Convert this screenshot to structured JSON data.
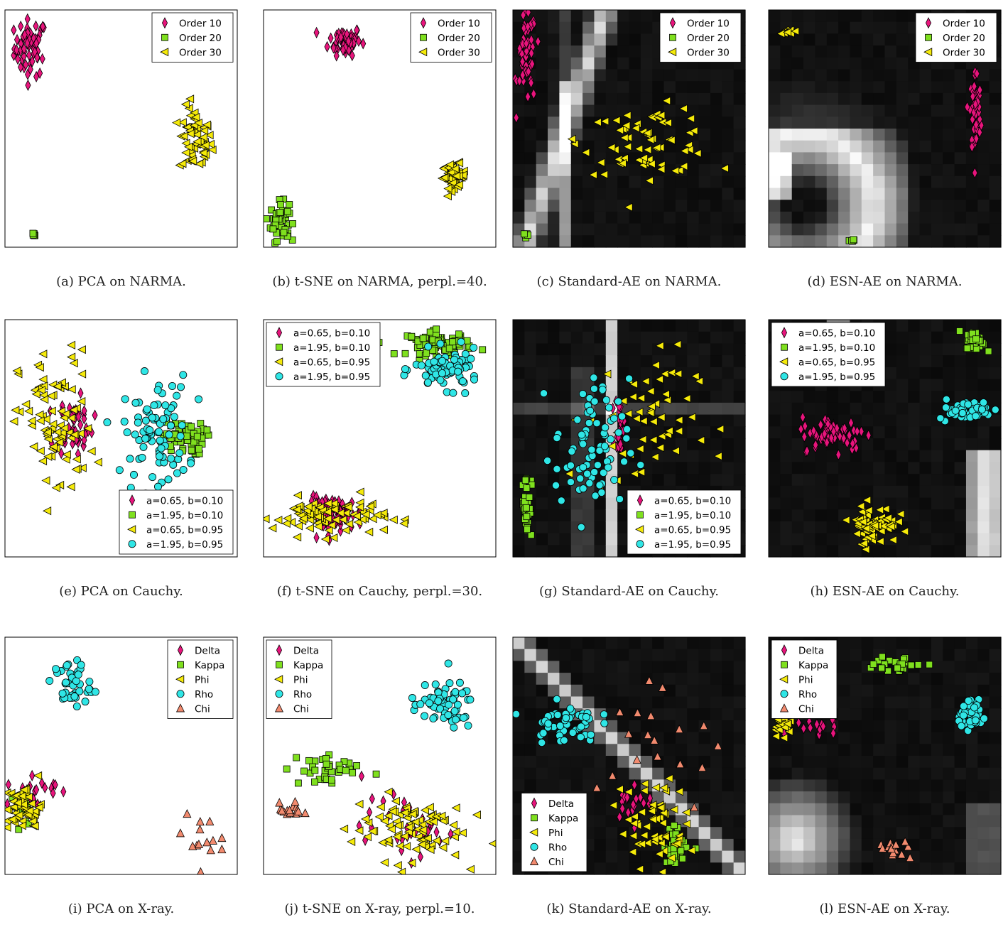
{
  "colors": {
    "magenta": "#e8147c",
    "green": "#7fe01e",
    "yellow": "#f5ea0a",
    "cyan": "#2fe6e6",
    "salmon": "#f28a6e"
  },
  "legends": {
    "narma": [
      {
        "label": "Order 10",
        "marker": "diamond",
        "color": "#e8147c"
      },
      {
        "label": "Order 20",
        "marker": "square",
        "color": "#7fe01e"
      },
      {
        "label": "Order 30",
        "marker": "triangle-left",
        "color": "#f5ea0a"
      }
    ],
    "cauchy": [
      {
        "label": "a=0.65, b=0.10",
        "marker": "diamond",
        "color": "#e8147c"
      },
      {
        "label": "a=1.95, b=0.10",
        "marker": "square",
        "color": "#7fe01e"
      },
      {
        "label": "a=0.65, b=0.95",
        "marker": "triangle-left",
        "color": "#f5ea0a"
      },
      {
        "label": "a=1.95, b=0.95",
        "marker": "circle",
        "color": "#2fe6e6"
      }
    ],
    "xray": [
      {
        "label": "Delta",
        "marker": "diamond",
        "color": "#e8147c"
      },
      {
        "label": "Kappa",
        "marker": "square",
        "color": "#7fe01e"
      },
      {
        "label": "Phi",
        "marker": "triangle-left",
        "color": "#f5ea0a"
      },
      {
        "label": "Rho",
        "marker": "circle",
        "color": "#2fe6e6"
      },
      {
        "label": "Chi",
        "marker": "triangle-up",
        "color": "#f28a6e"
      }
    ]
  },
  "chart_data": [
    {
      "id": "a",
      "type": "scatter",
      "caption": "(a) PCA on NARMA.",
      "background": "white",
      "legend": "narma",
      "legend_position": "top-right",
      "clusters": [
        {
          "series": 0,
          "cx": 0.11,
          "cy": 0.84,
          "sx": 0.035,
          "sy": 0.06,
          "n": 60
        },
        {
          "series": 1,
          "cx": 0.12,
          "cy": 0.05,
          "sx": 0.006,
          "sy": 0.005,
          "n": 6
        },
        {
          "series": 2,
          "cx": 0.82,
          "cy": 0.45,
          "sx": 0.035,
          "sy": 0.07,
          "n": 60
        }
      ]
    },
    {
      "id": "b",
      "type": "scatter",
      "caption": "(b) t-SNE on NARMA, perpl.=40.",
      "background": "white",
      "legend": "narma",
      "legend_position": "top-right",
      "tick_labels": true,
      "clusters": [
        {
          "series": 0,
          "cx": 0.35,
          "cy": 0.87,
          "sx": 0.035,
          "sy": 0.03,
          "n": 60
        },
        {
          "series": 1,
          "cx": 0.07,
          "cy": 0.11,
          "sx": 0.02,
          "sy": 0.04,
          "n": 60
        },
        {
          "series": 2,
          "cx": 0.82,
          "cy": 0.3,
          "sx": 0.025,
          "sy": 0.025,
          "n": 60
        }
      ]
    },
    {
      "id": "c",
      "type": "scatter",
      "caption": "(c) Standard-AE on NARMA.",
      "background": "heatmap",
      "legend": "narma",
      "legend_position": "top-right",
      "clusters": [
        {
          "series": 0,
          "cx": 0.06,
          "cy": 0.8,
          "sx": 0.02,
          "sy": 0.1,
          "n": 55
        },
        {
          "series": 1,
          "cx": 0.06,
          "cy": 0.05,
          "sx": 0.004,
          "sy": 0.006,
          "n": 5
        },
        {
          "series": 2,
          "cx": 0.58,
          "cy": 0.45,
          "sx": 0.14,
          "sy": 0.07,
          "n": 70
        }
      ]
    },
    {
      "id": "d",
      "type": "scatter",
      "caption": "(d) ESN-AE on NARMA.",
      "background": "heatmap",
      "legend": "narma",
      "legend_position": "top-right",
      "clusters": [
        {
          "series": 0,
          "cx": 0.89,
          "cy": 0.57,
          "sx": 0.012,
          "sy": 0.09,
          "n": 55
        },
        {
          "series": 1,
          "cx": 0.36,
          "cy": 0.03,
          "sx": 0.006,
          "sy": 0.004,
          "n": 6
        },
        {
          "series": 2,
          "cx": 0.08,
          "cy": 0.91,
          "sx": 0.015,
          "sy": 0.006,
          "n": 10
        }
      ]
    },
    {
      "id": "e",
      "type": "scatter",
      "caption": "(e) PCA on Cauchy.",
      "background": "white",
      "legend": "cauchy",
      "legend_position": "bottom-right",
      "clusters": [
        {
          "series": 0,
          "cx": 0.3,
          "cy": 0.55,
          "sx": 0.04,
          "sy": 0.06,
          "n": 50
        },
        {
          "series": 1,
          "cx": 0.77,
          "cy": 0.5,
          "sx": 0.045,
          "sy": 0.035,
          "n": 60
        },
        {
          "series": 2,
          "cx": 0.22,
          "cy": 0.55,
          "sx": 0.08,
          "sy": 0.16,
          "n": 90
        },
        {
          "series": 3,
          "cx": 0.65,
          "cy": 0.52,
          "sx": 0.07,
          "sy": 0.12,
          "n": 90
        }
      ]
    },
    {
      "id": "f",
      "type": "scatter",
      "caption": "(f) t-SNE on Cauchy, perpl.=30.",
      "background": "white",
      "legend": "cauchy",
      "legend_position": "top-left",
      "clusters": [
        {
          "series": 0,
          "cx": 0.31,
          "cy": 0.18,
          "sx": 0.06,
          "sy": 0.035,
          "n": 70
        },
        {
          "series": 1,
          "cx": 0.76,
          "cy": 0.9,
          "sx": 0.07,
          "sy": 0.025,
          "n": 70
        },
        {
          "series": 2,
          "cx": 0.28,
          "cy": 0.17,
          "sx": 0.12,
          "sy": 0.04,
          "n": 90
        },
        {
          "series": 3,
          "cx": 0.79,
          "cy": 0.79,
          "sx": 0.07,
          "sy": 0.04,
          "n": 80
        }
      ]
    },
    {
      "id": "g",
      "type": "scatter",
      "caption": "(g) Standard-AE on Cauchy.",
      "background": "heatmap",
      "legend": "cauchy",
      "legend_position": "bottom-right",
      "clusters": [
        {
          "series": 0,
          "cx": 0.46,
          "cy": 0.55,
          "sx": 0.01,
          "sy": 0.06,
          "n": 25
        },
        {
          "series": 1,
          "cx": 0.06,
          "cy": 0.22,
          "sx": 0.01,
          "sy": 0.07,
          "n": 40
        },
        {
          "series": 2,
          "cx": 0.55,
          "cy": 0.58,
          "sx": 0.12,
          "sy": 0.15,
          "n": 60
        },
        {
          "series": 3,
          "cx": 0.34,
          "cy": 0.45,
          "sx": 0.08,
          "sy": 0.15,
          "n": 80
        }
      ]
    },
    {
      "id": "h",
      "type": "scatter",
      "caption": "(h) ESN-AE on Cauchy.",
      "background": "heatmap",
      "legend": "cauchy",
      "legend_position": "top-left",
      "clusters": [
        {
          "series": 0,
          "cx": 0.28,
          "cy": 0.52,
          "sx": 0.07,
          "sy": 0.035,
          "n": 70
        },
        {
          "series": 1,
          "cx": 0.89,
          "cy": 0.91,
          "sx": 0.02,
          "sy": 0.02,
          "n": 45
        },
        {
          "series": 2,
          "cx": 0.45,
          "cy": 0.14,
          "sx": 0.05,
          "sy": 0.04,
          "n": 70
        },
        {
          "series": 3,
          "cx": 0.85,
          "cy": 0.62,
          "sx": 0.06,
          "sy": 0.02,
          "n": 60
        }
      ]
    },
    {
      "id": "i",
      "type": "scatter",
      "caption": "(i) PCA on X-ray.",
      "background": "white",
      "legend": "xray",
      "legend_position": "top-right",
      "clusters": [
        {
          "series": 0,
          "cx": 0.12,
          "cy": 0.35,
          "sx": 0.05,
          "sy": 0.04,
          "n": 22
        },
        {
          "series": 1,
          "cx": 0.08,
          "cy": 0.28,
          "sx": 0.02,
          "sy": 0.03,
          "n": 15
        },
        {
          "series": 2,
          "cx": 0.08,
          "cy": 0.28,
          "sx": 0.04,
          "sy": 0.05,
          "n": 55
        },
        {
          "series": 3,
          "cx": 0.29,
          "cy": 0.8,
          "sx": 0.04,
          "sy": 0.05,
          "n": 45
        },
        {
          "series": 4,
          "cx": 0.83,
          "cy": 0.15,
          "sx": 0.05,
          "sy": 0.07,
          "n": 14
        }
      ]
    },
    {
      "id": "j",
      "type": "scatter",
      "caption": "(j) t-SNE on X-ray, perpl.=10.",
      "background": "white",
      "legend": "xray",
      "legend_position": "top-left",
      "clusters": [
        {
          "series": 0,
          "cx": 0.62,
          "cy": 0.2,
          "sx": 0.1,
          "sy": 0.06,
          "n": 30
        },
        {
          "series": 1,
          "cx": 0.26,
          "cy": 0.44,
          "sx": 0.08,
          "sy": 0.04,
          "n": 35
        },
        {
          "series": 2,
          "cx": 0.62,
          "cy": 0.2,
          "sx": 0.12,
          "sy": 0.07,
          "n": 90
        },
        {
          "series": 3,
          "cx": 0.77,
          "cy": 0.71,
          "sx": 0.07,
          "sy": 0.05,
          "n": 60
        },
        {
          "series": 4,
          "cx": 0.12,
          "cy": 0.27,
          "sx": 0.025,
          "sy": 0.015,
          "n": 18
        }
      ]
    },
    {
      "id": "k",
      "type": "scatter",
      "caption": "(k) Standard-AE on X-ray.",
      "background": "heatmap",
      "legend": "xray",
      "legend_position": "bottom-left",
      "clusters": [
        {
          "series": 0,
          "cx": 0.52,
          "cy": 0.32,
          "sx": 0.04,
          "sy": 0.04,
          "n": 20
        },
        {
          "series": 1,
          "cx": 0.71,
          "cy": 0.12,
          "sx": 0.03,
          "sy": 0.04,
          "n": 35
        },
        {
          "series": 2,
          "cx": 0.6,
          "cy": 0.22,
          "sx": 0.07,
          "sy": 0.1,
          "n": 60
        },
        {
          "series": 3,
          "cx": 0.22,
          "cy": 0.64,
          "sx": 0.07,
          "sy": 0.04,
          "n": 50
        },
        {
          "series": 4,
          "cx": 0.62,
          "cy": 0.58,
          "sx": 0.18,
          "sy": 0.2,
          "n": 18
        }
      ]
    },
    {
      "id": "l",
      "type": "scatter",
      "caption": "(l) ESN-AE on X-ray.",
      "background": "heatmap",
      "legend": "xray",
      "legend_position": "top-left",
      "clusters": [
        {
          "series": 0,
          "cx": 0.21,
          "cy": 0.62,
          "sx": 0.05,
          "sy": 0.03,
          "n": 14
        },
        {
          "series": 1,
          "cx": 0.55,
          "cy": 0.88,
          "sx": 0.06,
          "sy": 0.02,
          "n": 25
        },
        {
          "series": 2,
          "cx": 0.06,
          "cy": 0.63,
          "sx": 0.02,
          "sy": 0.02,
          "n": 25
        },
        {
          "series": 3,
          "cx": 0.88,
          "cy": 0.67,
          "sx": 0.03,
          "sy": 0.025,
          "n": 55
        },
        {
          "series": 4,
          "cx": 0.55,
          "cy": 0.1,
          "sx": 0.04,
          "sy": 0.025,
          "n": 14
        }
      ]
    }
  ]
}
